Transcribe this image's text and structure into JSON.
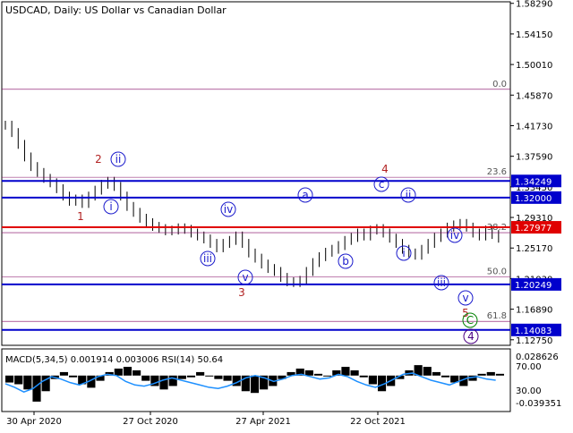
{
  "chart_data": {
    "type": "candlestick",
    "title": "USDCAD, Daily:  US Dollar vs Canadian Dollar",
    "x_ticks": [
      "30 Apr 2020",
      "27 Oct 2020",
      "27 Apr 2021",
      "22 Oct 2021"
    ],
    "price_ticks": [
      "1.58290",
      "1.54150",
      "1.50010",
      "1.45870",
      "1.41730",
      "1.37590",
      "1.33450",
      "1.29310",
      "1.25170",
      "1.21030",
      "1.16890",
      "1.12750"
    ],
    "price_ylim": [
      1.12,
      1.585
    ],
    "series": [
      {
        "name": "USDCAD",
        "values": [
          1.418,
          1.408,
          1.392,
          1.375,
          1.362,
          1.354,
          1.346,
          1.34,
          1.332,
          1.322,
          1.315,
          1.318,
          1.312,
          1.322,
          1.33,
          1.338,
          1.342,
          1.335,
          1.322,
          1.308,
          1.3,
          1.292,
          1.286,
          1.281,
          1.278,
          1.275,
          1.276,
          1.279,
          1.277,
          1.272,
          1.268,
          1.264,
          1.258,
          1.252,
          1.258,
          1.262,
          1.268,
          1.258,
          1.245,
          1.238,
          1.23,
          1.224,
          1.22,
          1.212,
          1.206,
          1.205,
          1.208,
          1.22,
          1.232,
          1.24,
          1.246,
          1.25,
          1.255,
          1.262,
          1.266,
          1.272,
          1.268,
          1.276,
          1.278,
          1.272,
          1.265,
          1.258,
          1.25,
          1.245,
          1.242,
          1.25,
          1.258,
          1.266,
          1.272,
          1.28,
          1.283,
          1.285,
          1.28,
          1.272,
          1.268,
          1.276,
          1.27,
          1.265
        ]
      }
    ],
    "levels": [
      {
        "value": 1.34249,
        "label": "1.34249",
        "color": "#0000cc"
      },
      {
        "value": 1.32,
        "label": "1.32000",
        "color": "#0000cc"
      },
      {
        "value": 1.27977,
        "label": "1.27977",
        "color": "#e00000"
      },
      {
        "value": 1.20249,
        "label": "1.20249",
        "color": "#0000cc"
      },
      {
        "value": 1.14083,
        "label": "1.14083",
        "color": "#0000cc"
      }
    ],
    "fib_levels": [
      {
        "label": "0.0",
        "value": 1.4665
      },
      {
        "label": "23.6",
        "value": 1.3475
      },
      {
        "label": "38.2",
        "value": 1.2725
      },
      {
        "label": "50.0",
        "value": 1.2125
      },
      {
        "label": "61.8",
        "value": 1.1525
      }
    ],
    "wave_labels": [
      "2",
      "1",
      "3",
      "4",
      "5",
      "ii",
      "i",
      "iii",
      "iv",
      "v",
      "a",
      "b",
      "c",
      "ii",
      "i",
      "iii",
      "iv",
      "v",
      "C",
      "4"
    ],
    "indicator": {
      "title": "MACD(5,34,5) 0.001914 0.003006 RSI(14) 50.64",
      "ticks": [
        "0.028626",
        "70.00",
        "30.00",
        "-0.039351"
      ],
      "ylim": [
        -0.039351,
        0.028626
      ],
      "macd": [
        -0.008,
        -0.01,
        -0.016,
        -0.03,
        -0.018,
        -0.004,
        0.004,
        -0.002,
        -0.01,
        -0.014,
        -0.006,
        0.004,
        0.008,
        0.01,
        0.006,
        -0.006,
        -0.012,
        -0.016,
        -0.012,
        -0.004,
        -0.002,
        0.004,
        0.0,
        -0.004,
        -0.006,
        -0.012,
        -0.018,
        -0.02,
        -0.016,
        -0.012,
        -0.004,
        0.004,
        0.008,
        0.006,
        0.002,
        0.0,
        0.006,
        0.01,
        0.006,
        -0.002,
        -0.01,
        -0.018,
        -0.012,
        -0.004,
        0.006,
        0.012,
        0.01,
        0.004,
        -0.002,
        -0.008,
        -0.012,
        -0.006,
        0.002,
        0.004,
        0.002
      ],
      "rsi": [
        44,
        38,
        30,
        36,
        48,
        56,
        52,
        46,
        42,
        48,
        56,
        60,
        58,
        48,
        42,
        40,
        44,
        50,
        54,
        50,
        46,
        42,
        38,
        36,
        40,
        46,
        54,
        58,
        54,
        48,
        52,
        58,
        60,
        56,
        52,
        54,
        60,
        56,
        48,
        42,
        38,
        44,
        52,
        60,
        62,
        56,
        50,
        46,
        42,
        48,
        54,
        56,
        52,
        50
      ]
    }
  }
}
